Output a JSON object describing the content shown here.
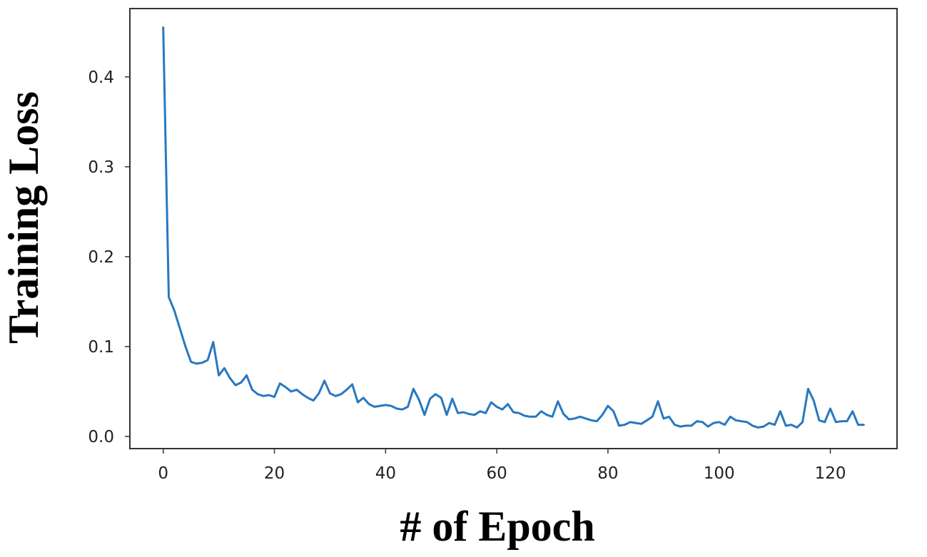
{
  "chart_data": {
    "type": "line",
    "title": "",
    "xlabel": "# of Epoch",
    "ylabel": "Training Loss",
    "xlim": [
      -6,
      132
    ],
    "ylim": [
      -0.0135,
      0.476
    ],
    "xticks": [
      0,
      20,
      40,
      60,
      80,
      100,
      120
    ],
    "yticks": [
      0.0,
      0.1,
      0.2,
      0.3,
      0.4
    ],
    "xtick_labels": [
      "0",
      "20",
      "40",
      "60",
      "80",
      "100",
      "120"
    ],
    "ytick_labels": [
      "0.0",
      "0.1",
      "0.2",
      "0.3",
      "0.4"
    ],
    "grid": false,
    "legend": "none",
    "line_color": "#2878c0",
    "series": [
      {
        "x": [
          0,
          1,
          2,
          3,
          4,
          5,
          6,
          7,
          8,
          9,
          10,
          11,
          12,
          13,
          14,
          15,
          16,
          17,
          18,
          19,
          20,
          21,
          22,
          23,
          24,
          25,
          26,
          27,
          28,
          29,
          30,
          31,
          32,
          33,
          34,
          35,
          36,
          37,
          38,
          39,
          40,
          41,
          42,
          43,
          44,
          45,
          46,
          47,
          48,
          49,
          50,
          51,
          52,
          53,
          54,
          55,
          56,
          57,
          58,
          59,
          60,
          61,
          62,
          63,
          64,
          65,
          66,
          67,
          68,
          69,
          70,
          71,
          72,
          73,
          74,
          75,
          76,
          77,
          78,
          79,
          80,
          81,
          82,
          83,
          84,
          85,
          86,
          87,
          88,
          89,
          90,
          91,
          92,
          93,
          94,
          95,
          96,
          97,
          98,
          99,
          100,
          101,
          102,
          103,
          104,
          105,
          106,
          107,
          108,
          109,
          110,
          111,
          112,
          113,
          114,
          115,
          116,
          117,
          118,
          119,
          120,
          121,
          122,
          123,
          124,
          125,
          126
        ],
        "values": [
          0.455,
          0.155,
          0.14,
          0.12,
          0.1,
          0.083,
          0.081,
          0.082,
          0.085,
          0.105,
          0.068,
          0.076,
          0.065,
          0.057,
          0.06,
          0.068,
          0.052,
          0.047,
          0.045,
          0.046,
          0.044,
          0.059,
          0.055,
          0.05,
          0.052,
          0.047,
          0.043,
          0.04,
          0.048,
          0.062,
          0.048,
          0.045,
          0.047,
          0.052,
          0.058,
          0.038,
          0.043,
          0.036,
          0.033,
          0.034,
          0.035,
          0.034,
          0.031,
          0.03,
          0.033,
          0.053,
          0.041,
          0.024,
          0.042,
          0.047,
          0.043,
          0.024,
          0.042,
          0.026,
          0.027,
          0.025,
          0.024,
          0.028,
          0.026,
          0.038,
          0.033,
          0.03,
          0.036,
          0.027,
          0.026,
          0.023,
          0.022,
          0.022,
          0.028,
          0.024,
          0.022,
          0.039,
          0.025,
          0.019,
          0.02,
          0.022,
          0.02,
          0.018,
          0.017,
          0.024,
          0.034,
          0.028,
          0.012,
          0.013,
          0.016,
          0.015,
          0.014,
          0.018,
          0.022,
          0.039,
          0.02,
          0.022,
          0.013,
          0.011,
          0.012,
          0.012,
          0.017,
          0.016,
          0.011,
          0.015,
          0.016,
          0.013,
          0.022,
          0.018,
          0.017,
          0.016,
          0.012,
          0.01,
          0.011,
          0.015,
          0.013,
          0.028,
          0.012,
          0.013,
          0.01,
          0.016,
          0.053,
          0.04,
          0.018,
          0.016,
          0.031,
          0.016,
          0.017,
          0.017,
          0.028,
          0.013,
          0.013
        ]
      }
    ]
  }
}
